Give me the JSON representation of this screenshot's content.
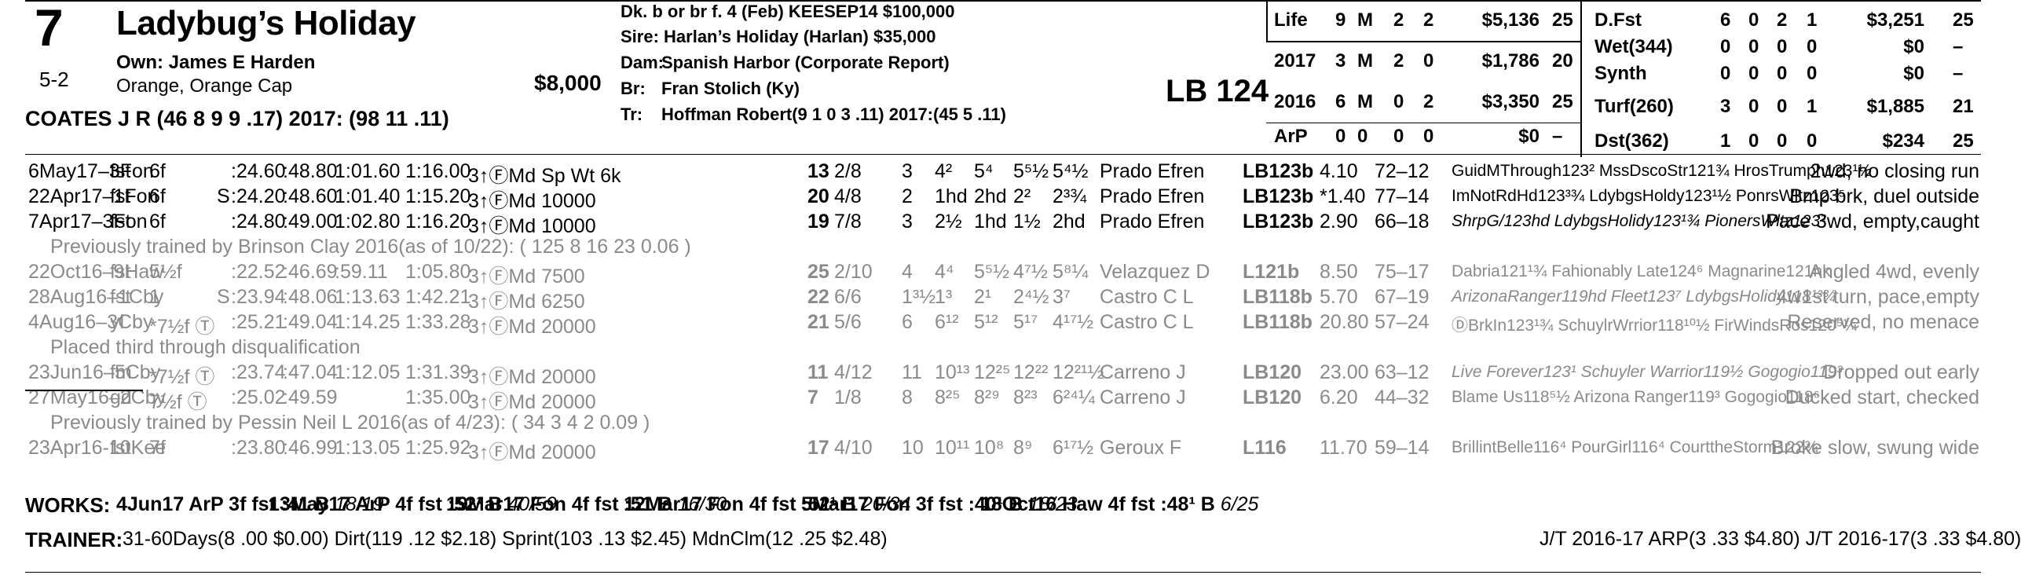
{
  "header": {
    "program_number": "7",
    "horse_name": "Ladybug’s Holiday",
    "morning_line": "5-2",
    "owner": "Own: James E Harden",
    "silks": "Orange, Orange Cap",
    "claim_price": "$8,000",
    "jockey": "COATES J R (46 8 9 9 .17) 2017: (98 11 .11)",
    "breeding_line": "Dk. b or br f. 4 (Feb) KEESEP14 $100,000",
    "sire": "Sire: Harlan’s Holiday (Harlan) $35,000",
    "dam_label": "Dam:",
    "dam": "Spanish Harbor (Corporate Report)",
    "breeder_label": "Br:",
    "breeder": "Fran Stolich (Ky)",
    "trainer_label": "Tr:",
    "trainer": "Hoffman Robert(9 1 0 3 .11) 2017:(45 5 .11)",
    "weight": "LB 124"
  },
  "record_left": [
    {
      "label": "Life",
      "a": "9",
      "b": "M",
      "c": "2",
      "d": "2",
      "earn": "$5,136",
      "sp": "25"
    },
    {
      "label": "2017",
      "a": "3",
      "b": "M",
      "c": "2",
      "d": "0",
      "earn": "$1,786",
      "sp": "20"
    },
    {
      "label": "2016",
      "a": "6",
      "b": "M",
      "c": "0",
      "d": "2",
      "earn": "$3,350",
      "sp": "25"
    },
    {
      "label": "ArP",
      "a": "0",
      "b": "0",
      "c": "0",
      "d": "0",
      "earn": "$0",
      "sp": "–"
    }
  ],
  "record_right": [
    {
      "label": "D.Fst",
      "a": "6",
      "b": "0",
      "c": "2",
      "d": "1",
      "earn": "$3,251",
      "sp": "25"
    },
    {
      "label": "Wet(344)",
      "a": "0",
      "b": "0",
      "c": "0",
      "d": "0",
      "earn": "$0",
      "sp": "–"
    },
    {
      "label": "Synth",
      "a": "0",
      "b": "0",
      "c": "0",
      "d": "0",
      "earn": "$0",
      "sp": "–"
    },
    {
      "label": "Turf(260)",
      "a": "3",
      "b": "0",
      "c": "0",
      "d": "1",
      "earn": "$1,885",
      "sp": "21"
    },
    {
      "label": "Dst(362)",
      "a": "1",
      "b": "0",
      "c": "0",
      "d": "0",
      "earn": "$234",
      "sp": "25"
    }
  ],
  "past_performances": [
    {
      "gray": false,
      "date": "6May17–3Fon",
      "cond": "fst",
      "dist": "6f",
      "s": "",
      "q1": ":24.60",
      "q2": ":48.80",
      "q3": "1:01.60",
      "fin": "1:16.00",
      "race": "3↑ⒻMd Sp Wt 6k",
      "bris": "13",
      "pp": "2/8",
      "st": "3",
      "c1": "4²",
      "c2": "5⁴",
      "str": "5⁵½",
      "fn": "5⁴½",
      "jock": "Prado Efren",
      "med": "LB123b",
      "odds": "4.10",
      "figs": "72–12",
      "top": "GuidMThrough123² MssDscoStr121¾ HrosTrumph123¹½",
      "comment": "2wd, no closing run"
    },
    {
      "gray": false,
      "date": "22Apr17–1Fon",
      "cond": "fst",
      "dist": "6f",
      "s": "S",
      "q1": ":24.20",
      "q2": ":48.60",
      "q3": "1:01.40",
      "fin": "1:15.20",
      "race": "3↑ⒻMd 10000",
      "bris": "20",
      "pp": "4/8",
      "st": "2",
      "c1": "1hd",
      "c2": "2hd",
      "str": "2²",
      "fn": "2³¾",
      "jock": "Prado Efren",
      "med": "LB123b",
      "odds": "*1.40",
      "figs": "77–14",
      "top": "ImNotRdHd123³¾ LdybgsHoldy123¹½ PonrsWltz123⁵",
      "comment": "Bmp brk, duel outside"
    },
    {
      "gray": false,
      "date": "7Apr17–3Fon",
      "cond": "fst",
      "dist": "6f",
      "s": "",
      "q1": ":24.80",
      "q2": ":49.00",
      "q3": "1:02.80",
      "fin": "1:16.20",
      "race": "3↑ⒻMd 10000",
      "bris": "19",
      "pp": "7/8",
      "st": "3",
      "c1": "2½",
      "c2": "1hd",
      "str": "1½",
      "fn": "2hd",
      "jock": "Prado Efren",
      "med": "LB123b",
      "odds": "2.90",
      "figs": "66–18",
      "top": "ShrpG/123hd LdybgsHolidy123¹¾ PionersWltz123²",
      "comment": "Pace 3wd, empty,caught"
    },
    {
      "note": true,
      "text": "Previously trained by Brinson Clay 2016(as of 10/22): ( 125 8 16 23 0.06 )"
    },
    {
      "gray": true,
      "date": "22Oct16–9Haw",
      "cond": "fst",
      "dist": "5½f",
      "s": "",
      "q1": ":22.52",
      "q2": ":46.69",
      "q3": ":59.11",
      "fin": "1:05.80",
      "race": "3↑ⒻMd 7500",
      "bris": "25",
      "pp": "2/10",
      "st": "4",
      "c1": "4⁴",
      "c2": "5⁵½",
      "str": "4⁷½",
      "fn": "5⁸¼",
      "jock": "Velazquez D",
      "med": "L121b",
      "odds": "8.50",
      "figs": "75–17",
      "top": "Dabria121¹¾ Fahionably Late124⁶ Magnarine121nk",
      "comment": "Angled 4wd, evenly"
    },
    {
      "gray": true,
      "date": "28Aug16–1Cby",
      "cond": "fst",
      "dist": "1",
      "s": "S",
      "q1": ":23.94",
      "q2": ":48.06",
      "q3": "1:13.63",
      "fin": "1:42.21",
      "race": "3↑ⒻMd 6250",
      "bris": "22",
      "pp": "6/6",
      "st": "1³½",
      "c1": "1³",
      "c2": "2¹",
      "str": "2⁴½",
      "fn": "3⁷",
      "jock": "Castro C L",
      "med": "LB118b",
      "odds": "5.70",
      "figs": "67–19",
      "top": "ArizonaRanger119hd Fleet123⁷ LdybgsHolidy118¹³¾",
      "comment": "4w1st turn, pace,empty"
    },
    {
      "gray": true,
      "date": "4Aug16–3Cby",
      "cond": "yl",
      "dist": "*7½f Ⓣ",
      "s": "",
      "q1": ":25.21",
      "q2": ":49.04",
      "q3": "1:14.25",
      "fin": "1:33.28",
      "race": "3↑ⒻMd 20000",
      "bris": "21",
      "pp": "5/6",
      "st": "6",
      "c1": "6¹²",
      "c2": "5¹²",
      "str": "5¹⁷",
      "fn": "4¹⁷½",
      "jock": "Castro C L",
      "med": "LB118b",
      "odds": "20.80",
      "figs": "57–24",
      "top": "ⒹBrkIn123¹¾ SchuylrWrrior118¹⁰½ FirWindsRos120⁵¼",
      "comment": "Reserved, no menace"
    },
    {
      "note": true,
      "text": "Placed third through disqualification"
    },
    {
      "gray": true,
      "date": "23Jun16–5Cby",
      "cond": "fm",
      "dist": "*7½f Ⓣ",
      "s": "",
      "q1": ":23.74",
      "q2": ":47.04",
      "q3": "1:12.05",
      "fin": "1:31.39",
      "race": "3↑ⒻMd 20000",
      "bris": "11",
      "pp": "4/12",
      "st": "11",
      "c1": "10¹³",
      "c2": "12²⁵",
      "str": "12²²",
      "fn": "12²¹½",
      "jock": "Carreno J",
      "med": "LB120",
      "odds": "23.00",
      "figs": "63–12",
      "top": "Live Forever123¹ Schuyler Warrior119½ Gogogio119³",
      "comment": "Dropped out early"
    },
    {
      "gray": true,
      "date": "27May16–2Cby",
      "cond": "gd",
      "dist": "7½f Ⓣ",
      "s": "",
      "q1": ":25.02",
      "q2": ":49.59",
      "q3": "",
      "fin": "1:35.00",
      "race": "3↑ⒻMd 20000",
      "bris": "7",
      "pp": "1/8",
      "st": "8",
      "c1": "8²⁵",
      "c2": "8²⁹",
      "str": "8²³",
      "fn": "6²⁴¼",
      "jock": "Carreno J",
      "med": "LB120",
      "odds": "6.20",
      "figs": "44–32",
      "top": "Blame Us118⁵½ Arizona Ranger119³ Gogogio118⁶",
      "comment": "Ducked start, checked"
    },
    {
      "note": true,
      "text": "Previously trained by Pessin Neil L 2016(as of 4/23): ( 34 3 4 2 0.09 )"
    },
    {
      "gray": true,
      "date": "23Apr16-10Kee",
      "cond": "fst",
      "dist": "7f",
      "s": "",
      "q1": ":23.80",
      "q2": ":46.99",
      "q3": "1:13.05",
      "fin": "1:25.92",
      "race": "3↑ⒻMd 20000",
      "bris": "17",
      "pp": "4/10",
      "st": "10",
      "c1": "10¹¹",
      "c2": "10⁸",
      "str": "8⁹",
      "fn": "6¹⁷½",
      "jock": "Geroux F",
      "med": "L116",
      "odds": "11.70",
      "figs": "59–14",
      "top": "BrillintBelle116⁴ PourGirl116⁴ CourttheStorm122¾",
      "comment": "Broke slow, swung wide"
    }
  ],
  "works_label": "WORKS:",
  "works": [
    {
      "date": "4Jun17",
      "track": "ArP",
      "dist": "3f",
      "surf": "fst",
      "time": ":41 B",
      "rank": "18/19"
    },
    {
      "date": "13May17",
      "track": "ArP",
      "dist": "4f",
      "surf": "fst",
      "time": ":52¹ B",
      "rank": "40/59"
    },
    {
      "date": "19Mar17",
      "track": "Fon",
      "dist": "4f",
      "surf": "fst",
      "time": ":51 B",
      "rank": "16/30"
    },
    {
      "date": "12Mar17",
      "track": "Fon",
      "dist": "4f",
      "surf": "fst",
      "time": ":52¹ B",
      "rank": "20/34"
    },
    {
      "date": "5Mar17",
      "track": "Fon",
      "dist": "3f",
      "surf": "fst",
      "time": ":40¹ B",
      "rank": "18/23"
    },
    {
      "date": "18Oct16",
      "track": "Haw",
      "dist": "4f",
      "surf": "fst",
      "time": ":48¹ B",
      "rank": "6/25"
    }
  ],
  "trainer_label": "TRAINER:",
  "trainer_stats": "31-60Days(8 .00 $0.00) Dirt(119 .12 $2.18) Sprint(103 .13 $2.45) MdnClm(12 .25 $2.48)",
  "jt_stats": "J/T 2016-17 ARP(3 .33 $4.80)  J/T 2016-17(3 .33 $4.80)"
}
